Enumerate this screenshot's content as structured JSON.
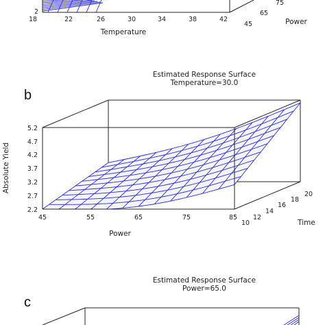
{
  "panel_a": {
    "xlabel": "Temperature",
    "x_ticks": [
      "18",
      "22",
      "26",
      "30",
      "34",
      "38",
      "42"
    ],
    "y_tick_visible": "2",
    "depth_label": "Power",
    "depth_ticks": [
      "45",
      "65",
      "75"
    ]
  },
  "panel_b": {
    "letter": "b",
    "title": "Estimated Response Surface",
    "subtitle": "Temperature=30.0",
    "ylabel": "Absolute Yield",
    "xlabel": "Power",
    "depth_label": "Time",
    "x_ticks": [
      "45",
      "55",
      "65",
      "75",
      "85"
    ],
    "y_ticks": [
      "2.2",
      "2.7",
      "3.2",
      "3.7",
      "4.2",
      "4.7",
      "5.2"
    ],
    "depth_ticks": [
      "10",
      "12",
      "14",
      "16",
      "18",
      "20"
    ]
  },
  "panel_c": {
    "letter": "c",
    "title": "Estimated Response Surface",
    "subtitle": "Power=65.0"
  },
  "chart_data": [
    {
      "type": "surface",
      "panel": "a",
      "xlabel": "Temperature",
      "zlabel": "Power",
      "xlim": [
        18,
        42
      ],
      "zlim": [
        45,
        85
      ]
    },
    {
      "type": "surface",
      "panel": "b",
      "title": "Estimated Response Surface",
      "subtitle": "Temperature=30.0",
      "xlabel": "Power",
      "zlabel": "Time",
      "ylabel": "Absolute Yield",
      "xlim": [
        45,
        85
      ],
      "zlim": [
        10,
        20
      ],
      "ylim": [
        2.2,
        5.2
      ],
      "corner_values": {
        "power45_time10": 2.2,
        "power85_time10": 3.1,
        "power45_time20": 2.9,
        "power85_time20": 5.1
      }
    },
    {
      "type": "surface",
      "panel": "c",
      "title": "Estimated Response Surface",
      "subtitle": "Power=65.0"
    }
  ]
}
